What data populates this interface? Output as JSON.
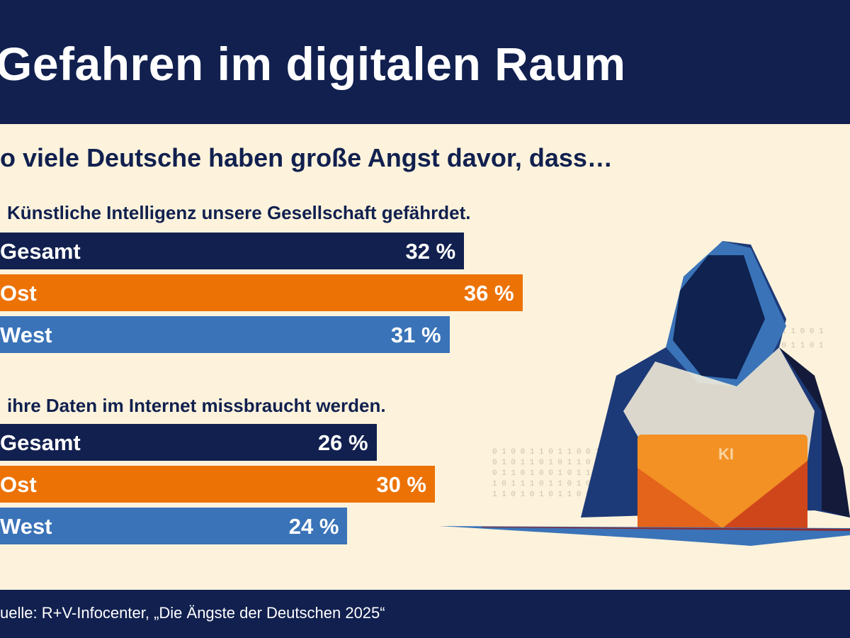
{
  "header": {
    "title": "Gefahren im digitalen Raum"
  },
  "subtitle": "o viele Deutsche haben große Angst davor, dass…",
  "footer": {
    "source": "uelle: R+V-Infocenter, „Die Ängste der Deutschen 2025“"
  },
  "illustration": {
    "laptop_label": "KI"
  },
  "colors": {
    "Gesamt": "#11204f",
    "Ost": "#ec7205",
    "West": "#3a73b8",
    "background": "#fdf3dc"
  },
  "chart_data": {
    "type": "bar",
    "orientation": "horizontal",
    "unit": "%",
    "groups": [
      {
        "label": "Künstliche Intelligenz unsere Gesellschaft gefährdet.",
        "bars": [
          {
            "category": "Gesamt",
            "value": 32,
            "label": "32 %"
          },
          {
            "category": "Ost",
            "value": 36,
            "label": "36 %"
          },
          {
            "category": "West",
            "value": 31,
            "label": "31 %"
          }
        ]
      },
      {
        "label": "ihre Daten im Internet missbraucht werden.",
        "bars": [
          {
            "category": "Gesamt",
            "value": 26,
            "label": "26 %"
          },
          {
            "category": "Ost",
            "value": 30,
            "label": "30 %"
          },
          {
            "category": "West",
            "value": 24,
            "label": "24 %"
          }
        ]
      }
    ]
  }
}
